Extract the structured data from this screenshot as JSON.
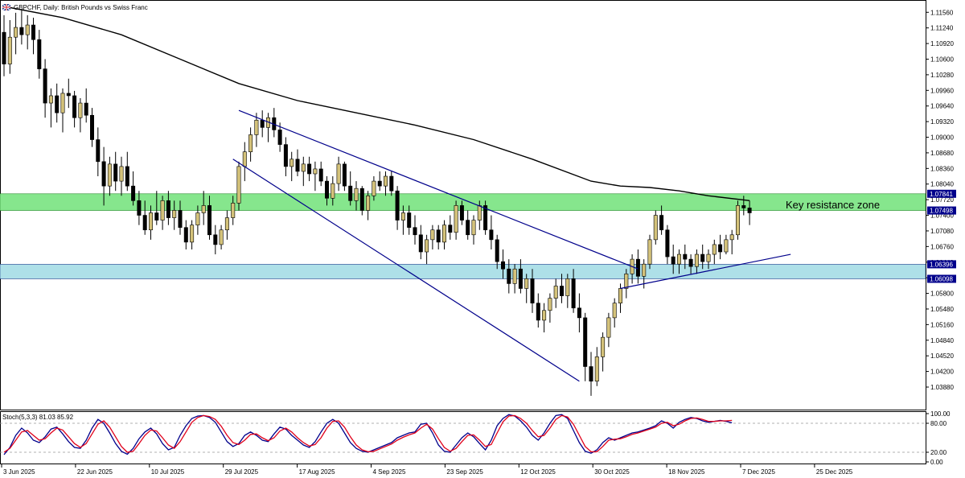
{
  "header": {
    "symbol_title": "GBPCHF, Daily:  British Pounds vs Swiss Franc",
    "flag_icon": "uk-flag-icon"
  },
  "annotation": {
    "resistance_label": "Key resistance zone"
  },
  "indicator": {
    "label": "Stoch(5,3,3) 81.03 85.92",
    "k_value": 81.03,
    "d_value": 85.92
  },
  "colors": {
    "bull_candle": "#d4c27a",
    "bear_candle": "#000000",
    "ma_line": "#000000",
    "channel": "#00008b",
    "resistance_zone": "#86e68d",
    "support_zone": "#aee0e8",
    "stoch_k": "#00008b",
    "stoch_d": "#e0001a",
    "axis_tag_bg": "#00008b"
  },
  "chart_data": [
    {
      "type": "candlestick",
      "symbol": "GBPCHF",
      "timeframe": "Daily",
      "ylim": [
        1.0355,
        1.1168
      ],
      "y_ticks": [
        "1.11560",
        "1.11240",
        "1.10920",
        "1.10600",
        "1.10280",
        "1.09960",
        "1.09640",
        "1.09320",
        "1.09000",
        "1.08680",
        "1.08360",
        "1.08040",
        "1.07720",
        "1.07400",
        "1.07080",
        "1.06760",
        "1.06440",
        "1.06120",
        "1.05800",
        "1.05480",
        "1.05160",
        "1.04840",
        "1.04520",
        "1.04200",
        "1.03880"
      ],
      "price_tags": [
        "1.07841",
        "1.07498",
        "1.06396",
        "1.06098"
      ],
      "x_ticks": [
        "3 Jun 2025",
        "22 Jun 2025",
        "10 Jul 2025",
        "29 Jul 2025",
        "17 Aug 2025",
        "4 Sep 2025",
        "23 Sep 2025",
        "12 Oct 2025",
        "30 Oct 2025",
        "18 Nov 2025",
        "7 Dec 2025",
        "25 Dec 2025"
      ],
      "zones": [
        {
          "name": "Key resistance zone",
          "from": 1.07498,
          "to": 1.07841
        },
        {
          "from": 1.06098,
          "to": 1.06396
        }
      ],
      "candles": [
        [
          1.1115,
          1.115,
          1.1025,
          1.105
        ],
        [
          1.105,
          1.114,
          1.103,
          1.1105
        ],
        [
          1.1105,
          1.1155,
          1.107,
          1.1125
        ],
        [
          1.1125,
          1.116,
          1.109,
          1.111
        ],
        [
          1.111,
          1.115,
          1.108,
          1.113
        ],
        [
          1.113,
          1.1145,
          1.107,
          1.11
        ],
        [
          1.11,
          1.112,
          1.102,
          1.104
        ],
        [
          1.104,
          1.106,
          1.094,
          1.097
        ],
        [
          1.097,
          1.1,
          1.092,
          1.0985
        ],
        [
          1.0985,
          1.101,
          1.093,
          1.095
        ],
        [
          1.095,
          1.1,
          1.091,
          1.099
        ],
        [
          1.099,
          1.102,
          1.096,
          1.0985
        ],
        [
          1.0985,
          1.0995,
          1.092,
          1.094
        ],
        [
          1.094,
          1.098,
          1.091,
          1.097
        ],
        [
          1.097,
          1.1,
          1.093,
          1.0945
        ],
        [
          1.0945,
          1.096,
          1.088,
          1.0895
        ],
        [
          1.0895,
          1.092,
          1.082,
          1.085
        ],
        [
          1.085,
          1.088,
          1.076,
          1.08
        ],
        [
          1.08,
          1.086,
          1.078,
          1.0845
        ],
        [
          1.0845,
          1.087,
          1.079,
          1.081
        ],
        [
          1.081,
          1.086,
          1.078,
          1.084
        ],
        [
          1.084,
          1.087,
          1.079,
          1.08
        ],
        [
          1.08,
          1.083,
          1.076,
          1.077
        ],
        [
          1.077,
          1.079,
          1.072,
          1.074
        ],
        [
          1.074,
          1.077,
          1.07,
          1.071
        ],
        [
          1.071,
          1.076,
          1.069,
          1.0745
        ],
        [
          1.0745,
          1.079,
          1.072,
          1.073
        ],
        [
          1.073,
          1.078,
          1.071,
          1.077
        ],
        [
          1.077,
          1.079,
          1.072,
          1.0735
        ],
        [
          1.0735,
          1.077,
          1.071,
          1.075
        ],
        [
          1.075,
          1.077,
          1.07,
          1.0715
        ],
        [
          1.0715,
          1.073,
          1.067,
          1.0685
        ],
        [
          1.0685,
          1.073,
          1.067,
          1.072
        ],
        [
          1.072,
          1.076,
          1.07,
          1.0745
        ],
        [
          1.0745,
          1.079,
          1.072,
          1.076
        ],
        [
          1.076,
          1.078,
          1.069,
          1.07
        ],
        [
          1.07,
          1.072,
          1.066,
          1.068
        ],
        [
          1.068,
          1.072,
          1.067,
          1.071
        ],
        [
          1.071,
          1.075,
          1.069,
          1.0735
        ],
        [
          1.0735,
          1.078,
          1.072,
          1.0765
        ],
        [
          1.0765,
          1.085,
          1.075,
          1.084
        ],
        [
          1.084,
          1.089,
          1.081,
          1.087
        ],
        [
          1.087,
          1.092,
          1.085,
          1.0905
        ],
        [
          1.0905,
          1.095,
          1.088,
          1.0935
        ],
        [
          1.0935,
          1.0955,
          1.09,
          1.092
        ],
        [
          1.092,
          1.095,
          1.089,
          1.094
        ],
        [
          1.094,
          1.096,
          1.09,
          1.0915
        ],
        [
          1.0915,
          1.093,
          1.087,
          1.0885
        ],
        [
          1.0885,
          1.09,
          1.082,
          1.084
        ],
        [
          1.084,
          1.087,
          1.081,
          1.0855
        ],
        [
          1.0855,
          1.0875,
          1.082,
          1.083
        ],
        [
          1.083,
          1.086,
          1.08,
          1.0845
        ],
        [
          1.0845,
          1.086,
          1.081,
          1.0825
        ],
        [
          1.0825,
          1.085,
          1.079,
          1.0835
        ],
        [
          1.0835,
          1.085,
          1.08,
          1.081
        ],
        [
          1.081,
          1.082,
          1.076,
          1.0775
        ],
        [
          1.0775,
          1.082,
          1.076,
          1.0805
        ],
        [
          1.0805,
          1.086,
          1.079,
          1.0845
        ],
        [
          1.0845,
          1.085,
          1.079,
          1.08
        ],
        [
          1.08,
          1.083,
          1.076,
          1.077
        ],
        [
          1.077,
          1.081,
          1.075,
          1.0795
        ],
        [
          1.0795,
          1.08,
          1.074,
          1.075
        ],
        [
          1.075,
          1.079,
          1.073,
          1.078
        ],
        [
          1.078,
          1.082,
          1.077,
          1.081
        ],
        [
          1.081,
          1.083,
          1.079,
          1.08
        ],
        [
          1.08,
          1.083,
          1.078,
          1.082
        ],
        [
          1.082,
          1.083,
          1.078,
          1.079
        ],
        [
          1.079,
          1.08,
          1.071,
          1.073
        ],
        [
          1.073,
          1.076,
          1.07,
          1.0745
        ],
        [
          1.0745,
          1.076,
          1.07,
          1.0715
        ],
        [
          1.0715,
          1.074,
          1.068,
          1.07
        ],
        [
          1.07,
          1.072,
          1.065,
          1.0665
        ],
        [
          1.0665,
          1.07,
          1.064,
          1.069
        ],
        [
          1.069,
          1.072,
          1.067,
          1.071
        ],
        [
          1.071,
          1.072,
          1.067,
          1.0685
        ],
        [
          1.0685,
          1.073,
          1.067,
          1.072
        ],
        [
          1.072,
          1.074,
          1.069,
          1.0705
        ],
        [
          1.0705,
          1.077,
          1.069,
          1.076
        ],
        [
          1.076,
          1.077,
          1.072,
          1.073
        ],
        [
          1.073,
          1.075,
          1.069,
          1.07
        ],
        [
          1.07,
          1.074,
          1.068,
          1.073
        ],
        [
          1.073,
          1.077,
          1.071,
          1.076
        ],
        [
          1.076,
          1.077,
          1.07,
          1.071
        ],
        [
          1.071,
          1.074,
          1.067,
          1.069
        ],
        [
          1.069,
          1.07,
          1.063,
          1.0645
        ],
        [
          1.0645,
          1.067,
          1.061,
          1.063
        ],
        [
          1.063,
          1.065,
          1.058,
          1.06
        ],
        [
          1.06,
          1.064,
          1.058,
          1.063
        ],
        [
          1.063,
          1.065,
          1.058,
          1.059
        ],
        [
          1.059,
          1.062,
          1.056,
          1.061
        ],
        [
          1.061,
          1.063,
          1.054,
          1.056
        ],
        [
          1.056,
          1.058,
          1.051,
          1.0525
        ],
        [
          1.0525,
          1.056,
          1.05,
          1.0545
        ],
        [
          1.0545,
          1.058,
          1.052,
          1.057
        ],
        [
          1.057,
          1.061,
          1.055,
          1.0595
        ],
        [
          1.0595,
          1.062,
          1.056,
          1.0575
        ],
        [
          1.0575,
          1.062,
          1.055,
          1.061
        ],
        [
          1.061,
          1.063,
          1.054,
          1.055
        ],
        [
          1.055,
          1.058,
          1.05,
          1.053
        ],
        [
          1.053,
          1.054,
          1.04,
          1.043
        ],
        [
          1.043,
          1.046,
          1.037,
          1.04
        ],
        [
          1.04,
          1.047,
          1.039,
          1.045
        ],
        [
          1.045,
          1.05,
          1.042,
          1.049
        ],
        [
          1.049,
          1.054,
          1.047,
          1.053
        ],
        [
          1.053,
          1.057,
          1.051,
          1.056
        ],
        [
          1.056,
          1.06,
          1.054,
          1.059
        ],
        [
          1.059,
          1.063,
          1.057,
          1.062
        ],
        [
          1.062,
          1.066,
          1.06,
          1.065
        ],
        [
          1.065,
          1.067,
          1.06,
          1.0615
        ],
        [
          1.0615,
          1.065,
          1.059,
          1.064
        ],
        [
          1.064,
          1.07,
          1.063,
          1.069
        ],
        [
          1.069,
          1.075,
          1.068,
          1.074
        ],
        [
          1.074,
          1.076,
          1.07,
          1.071
        ],
        [
          1.071,
          1.072,
          1.064,
          1.0655
        ],
        [
          1.0655,
          1.068,
          1.062,
          1.064
        ],
        [
          1.064,
          1.067,
          1.062,
          1.066
        ],
        [
          1.066,
          1.068,
          1.063,
          1.065
        ],
        [
          1.065,
          1.066,
          1.062,
          1.0635
        ],
        [
          1.0635,
          1.067,
          1.062,
          1.066
        ],
        [
          1.066,
          1.068,
          1.063,
          1.0645
        ],
        [
          1.0645,
          1.067,
          1.063,
          1.066
        ],
        [
          1.066,
          1.069,
          1.064,
          1.068
        ],
        [
          1.068,
          1.07,
          1.065,
          1.0665
        ],
        [
          1.0665,
          1.07,
          1.066,
          1.069
        ],
        [
          1.069,
          1.071,
          1.066,
          1.07
        ],
        [
          1.07,
          1.077,
          1.069,
          1.076
        ],
        [
          1.076,
          1.078,
          1.074,
          1.0755
        ],
        [
          1.0755,
          1.077,
          1.072,
          1.0745
        ]
      ],
      "moving_average": [
        [
          0,
          1.1168
        ],
        [
          10,
          1.1145
        ],
        [
          20,
          1.111
        ],
        [
          30,
          1.106
        ],
        [
          40,
          1.101
        ],
        [
          50,
          1.0975
        ],
        [
          60,
          1.095
        ],
        [
          70,
          1.0925
        ],
        [
          80,
          1.0895
        ],
        [
          90,
          1.0855
        ],
        [
          100,
          1.081
        ],
        [
          105,
          1.08
        ],
        [
          110,
          1.0797
        ],
        [
          115,
          1.079
        ],
        [
          120,
          1.078
        ],
        [
          127,
          1.077
        ]
      ],
      "channel": [
        {
          "from": [
            40,
            1.0955
          ],
          "to": [
            108,
            1.063
          ]
        },
        {
          "from": [
            39,
            1.0855
          ],
          "to": [
            98,
            1.04
          ]
        }
      ],
      "uptrend_line": {
        "from": [
          105,
          1.059
        ],
        "to": [
          134,
          1.066
        ]
      }
    },
    {
      "type": "line",
      "title": "Stoch(5,3,3) 81.03 85.92",
      "ylim": [
        0,
        100
      ],
      "y_ticks": [
        "100.00",
        "80.00",
        "20.00",
        "0.00"
      ],
      "levels": [
        80,
        20
      ],
      "series": [
        {
          "values": [
            15,
            30,
            55,
            70,
            60,
            45,
            40,
            52,
            68,
            72,
            58,
            42,
            30,
            28,
            45,
            70,
            88,
            80,
            60,
            38,
            22,
            16,
            28,
            48,
            62,
            70,
            58,
            38,
            25,
            30,
            55,
            75,
            90,
            95,
            96,
            92,
            82,
            62,
            42,
            32,
            38,
            55,
            62,
            55,
            45,
            42,
            58,
            72,
            68,
            55,
            45,
            35,
            30,
            42,
            62,
            80,
            88,
            80,
            60,
            40,
            28,
            22,
            20,
            25,
            30,
            35,
            40,
            50,
            55,
            60,
            62,
            78,
            80,
            60,
            35,
            22,
            20,
            35,
            50,
            60,
            52,
            38,
            25,
            45,
            75,
            90,
            98,
            95,
            85,
            72,
            55,
            45,
            60,
            80,
            96,
            98,
            90,
            65,
            40,
            22,
            18,
            25,
            40,
            50,
            45,
            50,
            55,
            60,
            62,
            66,
            70,
            75,
            85,
            80,
            70,
            82,
            88,
            92,
            90,
            85,
            82,
            84,
            86,
            84,
            81
          ]
        },
        {
          "values": [
            20,
            28,
            45,
            62,
            65,
            55,
            45,
            48,
            60,
            70,
            66,
            52,
            38,
            30,
            38,
            58,
            78,
            85,
            72,
            52,
            32,
            20,
            22,
            38,
            55,
            66,
            64,
            50,
            35,
            28,
            42,
            62,
            82,
            92,
            96,
            94,
            88,
            74,
            55,
            40,
            36,
            45,
            57,
            58,
            50,
            44,
            50,
            64,
            70,
            62,
            50,
            40,
            33,
            36,
            50,
            70,
            84,
            85,
            72,
            52,
            35,
            25,
            21,
            22,
            27,
            32,
            37,
            45,
            51,
            56,
            60,
            70,
            78,
            68,
            48,
            30,
            22,
            28,
            42,
            55,
            56,
            45,
            32,
            36,
            60,
            83,
            95,
            96,
            90,
            80,
            65,
            52,
            55,
            70,
            88,
            96,
            93,
            78,
            55,
            32,
            21,
            21,
            32,
            45,
            47,
            48,
            52,
            57,
            60,
            64,
            68,
            72,
            80,
            82,
            75,
            78,
            85,
            90,
            91,
            88,
            84,
            84,
            85,
            85,
            86
          ]
        }
      ]
    }
  ]
}
